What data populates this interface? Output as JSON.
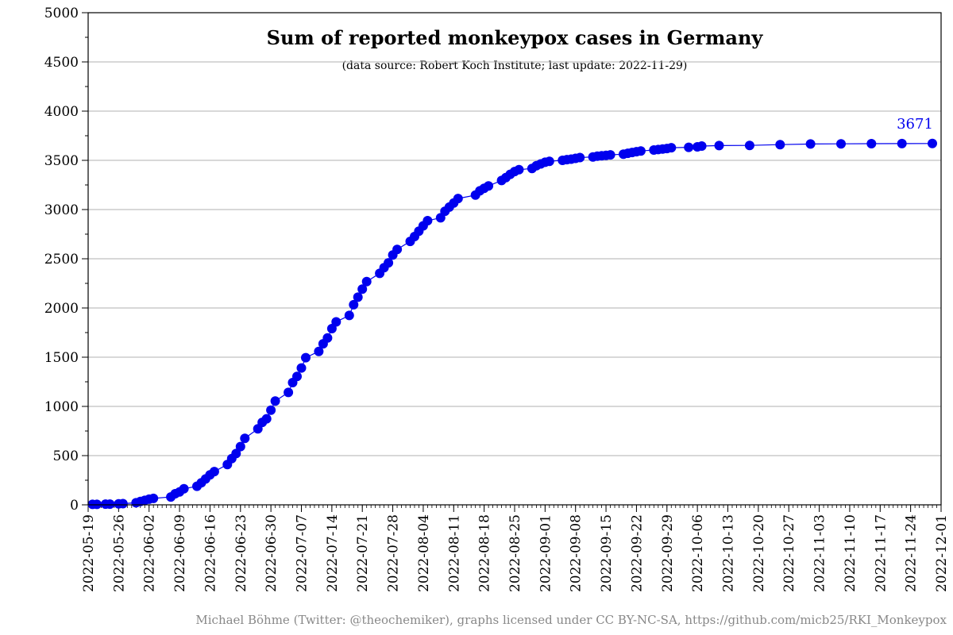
{
  "chart_data": {
    "type": "line",
    "title": "Sum of reported monkeypox cases in Germany",
    "subtitle": "(data source: Robert Koch Institute; last update: 2022-11-29)",
    "credit": "Michael Böhme (Twitter: @theochemiker), graphs licensed under CC BY-NC-SA, https://github.com/micb25/RKI_Monkeypox",
    "xlabel": "",
    "ylabel": "",
    "ylim": [
      0,
      5000
    ],
    "yticks": [
      0,
      500,
      1000,
      1500,
      2000,
      2500,
      3000,
      3500,
      4000,
      4500,
      5000
    ],
    "xlim": [
      "2022-05-19",
      "2022-12-01"
    ],
    "xticks": [
      "2022-05-19",
      "2022-05-26",
      "2022-06-02",
      "2022-06-09",
      "2022-06-16",
      "2022-06-23",
      "2022-06-30",
      "2022-07-07",
      "2022-07-14",
      "2022-07-21",
      "2022-07-28",
      "2022-08-04",
      "2022-08-11",
      "2022-08-18",
      "2022-08-25",
      "2022-09-01",
      "2022-09-08",
      "2022-09-15",
      "2022-09-22",
      "2022-09-29",
      "2022-10-06",
      "2022-10-13",
      "2022-10-20",
      "2022-10-27",
      "2022-11-03",
      "2022-11-10",
      "2022-11-17",
      "2022-11-24",
      "2022-12-01"
    ],
    "grid": "horizontal",
    "last_value_label": "3671",
    "series_color": "#0000ee",
    "points": [
      [
        "2022-05-20",
        5
      ],
      [
        "2022-05-21",
        5
      ],
      [
        "2022-05-23",
        7
      ],
      [
        "2022-05-24",
        7
      ],
      [
        "2022-05-26",
        10
      ],
      [
        "2022-05-27",
        12
      ],
      [
        "2022-05-30",
        21
      ],
      [
        "2022-05-31",
        35
      ],
      [
        "2022-06-01",
        45
      ],
      [
        "2022-06-02",
        57
      ],
      [
        "2022-06-03",
        65
      ],
      [
        "2022-06-07",
        80
      ],
      [
        "2022-06-08",
        113
      ],
      [
        "2022-06-09",
        131
      ],
      [
        "2022-06-10",
        163
      ],
      [
        "2022-06-13",
        189
      ],
      [
        "2022-06-14",
        223
      ],
      [
        "2022-06-15",
        263
      ],
      [
        "2022-06-16",
        305
      ],
      [
        "2022-06-17",
        338
      ],
      [
        "2022-06-20",
        410
      ],
      [
        "2022-06-21",
        470
      ],
      [
        "2022-06-22",
        521
      ],
      [
        "2022-06-23",
        592
      ],
      [
        "2022-06-24",
        676
      ],
      [
        "2022-06-27",
        772
      ],
      [
        "2022-06-28",
        838
      ],
      [
        "2022-06-29",
        874
      ],
      [
        "2022-06-30",
        962
      ],
      [
        "2022-07-01",
        1054
      ],
      [
        "2022-07-04",
        1142
      ],
      [
        "2022-07-05",
        1242
      ],
      [
        "2022-07-06",
        1304
      ],
      [
        "2022-07-07",
        1390
      ],
      [
        "2022-07-08",
        1495
      ],
      [
        "2022-07-11",
        1559
      ],
      [
        "2022-07-12",
        1636
      ],
      [
        "2022-07-13",
        1695
      ],
      [
        "2022-07-14",
        1790
      ],
      [
        "2022-07-15",
        1859
      ],
      [
        "2022-07-18",
        1924
      ],
      [
        "2022-07-19",
        2033
      ],
      [
        "2022-07-20",
        2110
      ],
      [
        "2022-07-21",
        2191
      ],
      [
        "2022-07-22",
        2268
      ],
      [
        "2022-07-25",
        2352
      ],
      [
        "2022-07-26",
        2410
      ],
      [
        "2022-07-27",
        2459
      ],
      [
        "2022-07-28",
        2539
      ],
      [
        "2022-07-29",
        2595
      ],
      [
        "2022-08-01",
        2677
      ],
      [
        "2022-08-02",
        2726
      ],
      [
        "2022-08-03",
        2781
      ],
      [
        "2022-08-04",
        2835
      ],
      [
        "2022-08-05",
        2887
      ],
      [
        "2022-08-08",
        2916
      ],
      [
        "2022-08-09",
        2983
      ],
      [
        "2022-08-10",
        3025
      ],
      [
        "2022-08-11",
        3067
      ],
      [
        "2022-08-12",
        3112
      ],
      [
        "2022-08-16",
        3147
      ],
      [
        "2022-08-17",
        3190
      ],
      [
        "2022-08-18",
        3215
      ],
      [
        "2022-08-19",
        3240
      ],
      [
        "2022-08-22",
        3295
      ],
      [
        "2022-08-23",
        3325
      ],
      [
        "2022-08-24",
        3358
      ],
      [
        "2022-08-25",
        3386
      ],
      [
        "2022-08-26",
        3405
      ],
      [
        "2022-08-29",
        3418
      ],
      [
        "2022-08-30",
        3446
      ],
      [
        "2022-08-31",
        3464
      ],
      [
        "2022-09-01",
        3481
      ],
      [
        "2022-09-02",
        3490
      ],
      [
        "2022-09-05",
        3500
      ],
      [
        "2022-09-06",
        3507
      ],
      [
        "2022-09-07",
        3512
      ],
      [
        "2022-09-08",
        3520
      ],
      [
        "2022-09-09",
        3528
      ],
      [
        "2022-09-12",
        3535
      ],
      [
        "2022-09-13",
        3542
      ],
      [
        "2022-09-14",
        3547
      ],
      [
        "2022-09-15",
        3550
      ],
      [
        "2022-09-16",
        3556
      ],
      [
        "2022-09-19",
        3563
      ],
      [
        "2022-09-20",
        3572
      ],
      [
        "2022-09-21",
        3580
      ],
      [
        "2022-09-22",
        3588
      ],
      [
        "2022-09-23",
        3595
      ],
      [
        "2022-09-26",
        3605
      ],
      [
        "2022-09-27",
        3610
      ],
      [
        "2022-09-28",
        3615
      ],
      [
        "2022-09-29",
        3620
      ],
      [
        "2022-09-30",
        3628
      ],
      [
        "2022-10-04",
        3632
      ],
      [
        "2022-10-06",
        3637
      ],
      [
        "2022-10-07",
        3645
      ],
      [
        "2022-10-11",
        3650
      ],
      [
        "2022-10-18",
        3652
      ],
      [
        "2022-10-25",
        3660
      ],
      [
        "2022-11-01",
        3666
      ],
      [
        "2022-11-08",
        3668
      ],
      [
        "2022-11-15",
        3669
      ],
      [
        "2022-11-22",
        3670
      ],
      [
        "2022-11-29",
        3671
      ]
    ]
  }
}
